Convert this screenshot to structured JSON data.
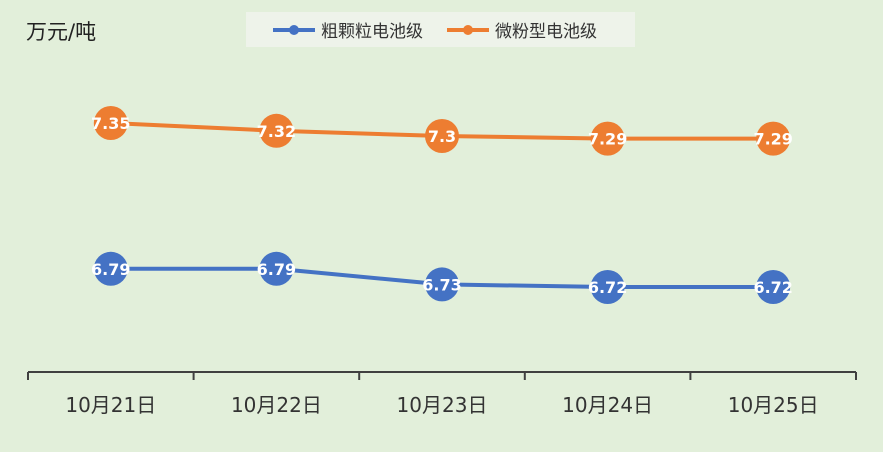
{
  "chart_data": {
    "type": "line",
    "ylabel": "万元/吨",
    "categories": [
      "10月21日",
      "10月22日",
      "10月23日",
      "10月24日",
      "10月25日"
    ],
    "series": [
      {
        "name": "粗颗粒电池级",
        "color": "#4472c4",
        "values": [
          6.79,
          6.79,
          6.73,
          6.72,
          6.72
        ],
        "labels": [
          "6.79",
          "6.79",
          "6.73",
          "6.72",
          "6.72"
        ]
      },
      {
        "name": "微粉型电池级",
        "color": "#ed7d31",
        "values": [
          7.35,
          7.32,
          7.3,
          7.29,
          7.29
        ],
        "labels": [
          "7.35",
          "7.32",
          "7.3",
          "7.29",
          "7.29"
        ]
      }
    ],
    "ylim": [
      6.5,
      7.6
    ],
    "grid": false,
    "legend": "top",
    "background": "#e2efda"
  }
}
